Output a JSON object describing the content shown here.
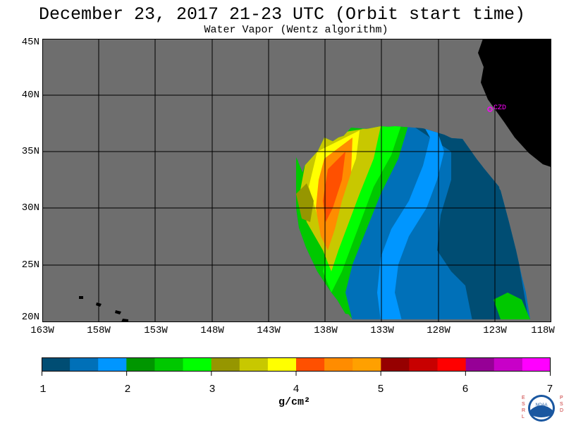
{
  "header": {
    "title": "December 23, 2017  21-23 UTC  (Orbit start time)",
    "subtitle": "Water Vapor (Wentz algorithm)"
  },
  "map": {
    "lat_labels": [
      "45N",
      "40N",
      "35N",
      "30N",
      "25N",
      "20N"
    ],
    "lon_labels": [
      "163W",
      "158W",
      "153W",
      "148W",
      "143W",
      "138W",
      "133W",
      "128W",
      "123W",
      "118W"
    ],
    "station_label": "CZD",
    "no_data_color": "#6e6e6e",
    "land_color": "#000000",
    "grid_color": "#000000",
    "station_color": "#ff00ff"
  },
  "colorbar": {
    "colors": [
      "#004d73",
      "#0070b8",
      "#0096ff",
      "#009600",
      "#00c800",
      "#00ff00",
      "#969600",
      "#c8c800",
      "#ffff00",
      "#ff5000",
      "#ff8c00",
      "#ffa000",
      "#960000",
      "#c80000",
      "#ff0000",
      "#960096",
      "#c800c8",
      "#ff00ff"
    ],
    "tick_labels": [
      "1",
      "2",
      "3",
      "4",
      "5",
      "6",
      "7"
    ],
    "units": "g/cm²"
  },
  "logo": {
    "left_letters": "ESRL",
    "right_letters": "PSD",
    "text": "NOAA"
  }
}
